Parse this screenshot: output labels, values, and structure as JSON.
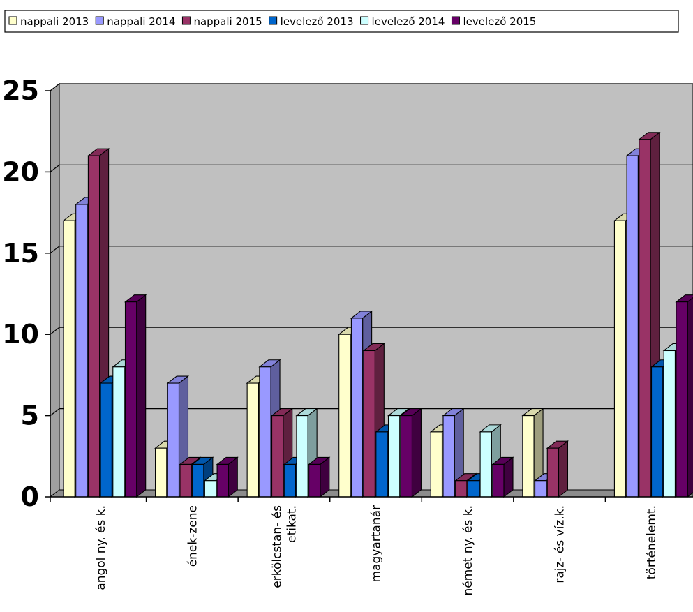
{
  "chart_data": {
    "type": "bar",
    "style": "3d-clustered-column",
    "title": "",
    "xlabel": "",
    "ylabel": "",
    "ylim": [
      0,
      25
    ],
    "yticks": [
      "0",
      "5",
      "10",
      "15",
      "20",
      "25"
    ],
    "grid": true,
    "legend_position": "top",
    "categories": [
      [
        "angol ny. és k."
      ],
      [
        "ének-zene"
      ],
      [
        "erkölcstan- és",
        "etikat."
      ],
      [
        "magyartanár"
      ],
      [
        "német ny. és k."
      ],
      [
        "rajz- és víz.k."
      ],
      [
        "történelemt."
      ]
    ],
    "series": [
      {
        "name": "nappali 2013",
        "color": "#ffffcc",
        "values": [
          17,
          3,
          7,
          10,
          4,
          5,
          17
        ]
      },
      {
        "name": "nappali 2014",
        "color": "#9999ff",
        "values": [
          18,
          7,
          8,
          11,
          5,
          1,
          21
        ]
      },
      {
        "name": "nappali 2015",
        "color": "#993366",
        "values": [
          21,
          2,
          5,
          9,
          1,
          3,
          22
        ]
      },
      {
        "name": "levelező 2013",
        "color": "#0066cc",
        "values": [
          7,
          2,
          2,
          4,
          1,
          0,
          8
        ]
      },
      {
        "name": "levelező 2014",
        "color": "#ccffff",
        "values": [
          8,
          1,
          5,
          5,
          4,
          0,
          9
        ]
      },
      {
        "name": "levelező 2015",
        "color": "#660066",
        "values": [
          12,
          2,
          2,
          5,
          2,
          0,
          12
        ]
      }
    ]
  }
}
